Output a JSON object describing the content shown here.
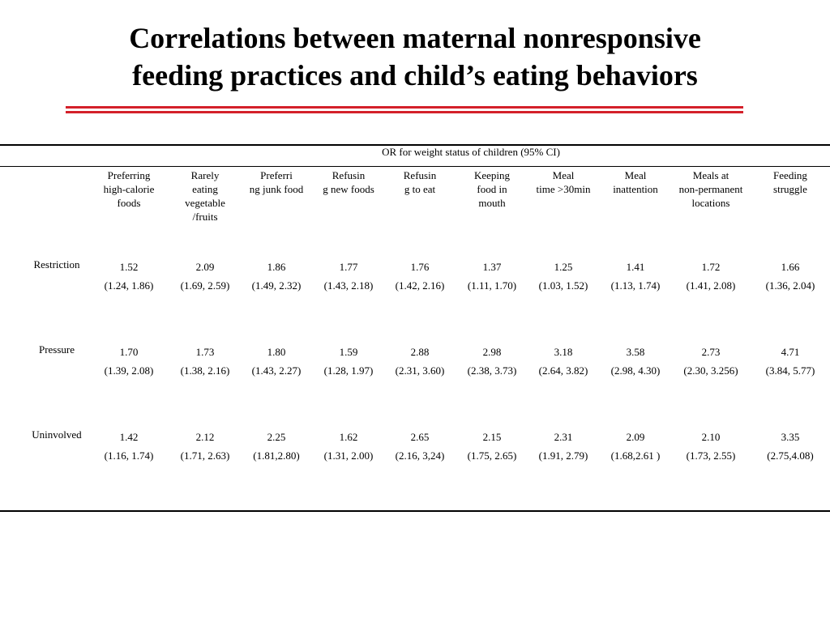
{
  "title": {
    "line1": "Correlations between maternal nonresponsive",
    "line2": "feeding practices and child’s eating behaviors"
  },
  "table": {
    "super_header": "OR for weight status of children (95% CI)",
    "columns": [
      [
        "Preferring",
        "high-calorie",
        "foods"
      ],
      [
        "Rarely",
        "eating",
        "vegetable",
        "/fruits"
      ],
      [
        "Preferri",
        "ng junk food"
      ],
      [
        "Refusin",
        "g new foods"
      ],
      [
        "Refusin",
        "g to eat"
      ],
      [
        "Keeping",
        "food in",
        "mouth"
      ],
      [
        "Meal",
        "time >30min"
      ],
      [
        "Meal",
        "inattention"
      ],
      [
        "Meals at",
        "non-permanent",
        "locations"
      ],
      [
        "Feeding",
        "struggle"
      ]
    ],
    "rows": [
      {
        "label": "Restriction",
        "or": [
          "1.52",
          "2.09",
          "1.86",
          "1.77",
          "1.76",
          "1.37",
          "1.25",
          "1.41",
          "1.72",
          "1.66"
        ],
        "ci": [
          "(1.24, 1.86)",
          "(1.69, 2.59)",
          "(1.49, 2.32)",
          "(1.43, 2.18)",
          "(1.42, 2.16)",
          "(1.11, 1.70)",
          "(1.03, 1.52)",
          "(1.13, 1.74)",
          "(1.41, 2.08)",
          "(1.36, 2.04)"
        ]
      },
      {
        "label": "Pressure",
        "or": [
          "1.70",
          "1.73",
          "1.80",
          "1.59",
          "2.88",
          "2.98",
          "3.18",
          "3.58",
          "2.73",
          "4.71"
        ],
        "ci": [
          "(1.39, 2.08)",
          "(1.38, 2.16)",
          "(1.43, 2.27)",
          "(1.28, 1.97)",
          "(2.31, 3.60)",
          "(2.38, 3.73)",
          "(2.64, 3.82)",
          "(2.98, 4.30)",
          "(2.30, 3.256)",
          "(3.84, 5.77)"
        ]
      },
      {
        "label": "Uninvolved",
        "or": [
          "1.42",
          "2.12",
          "2.25",
          "1.62",
          "2.65",
          "2.15",
          "2.31",
          "2.09",
          "2.10",
          "3.35"
        ],
        "ci": [
          "(1.16, 1.74)",
          "(1.71, 2.63)",
          "(1.81,2.80)",
          "(1.31, 2.00)",
          "(2.16, 3,24)",
          "(1.75, 2.65)",
          "(1.91, 2.79)",
          "(1.68,2.61 )",
          "(1.73, 2.55)",
          "(2.75,4.08)"
        ]
      }
    ]
  },
  "colors": {
    "accent_rule": "#d4202a",
    "text": "#000000"
  }
}
